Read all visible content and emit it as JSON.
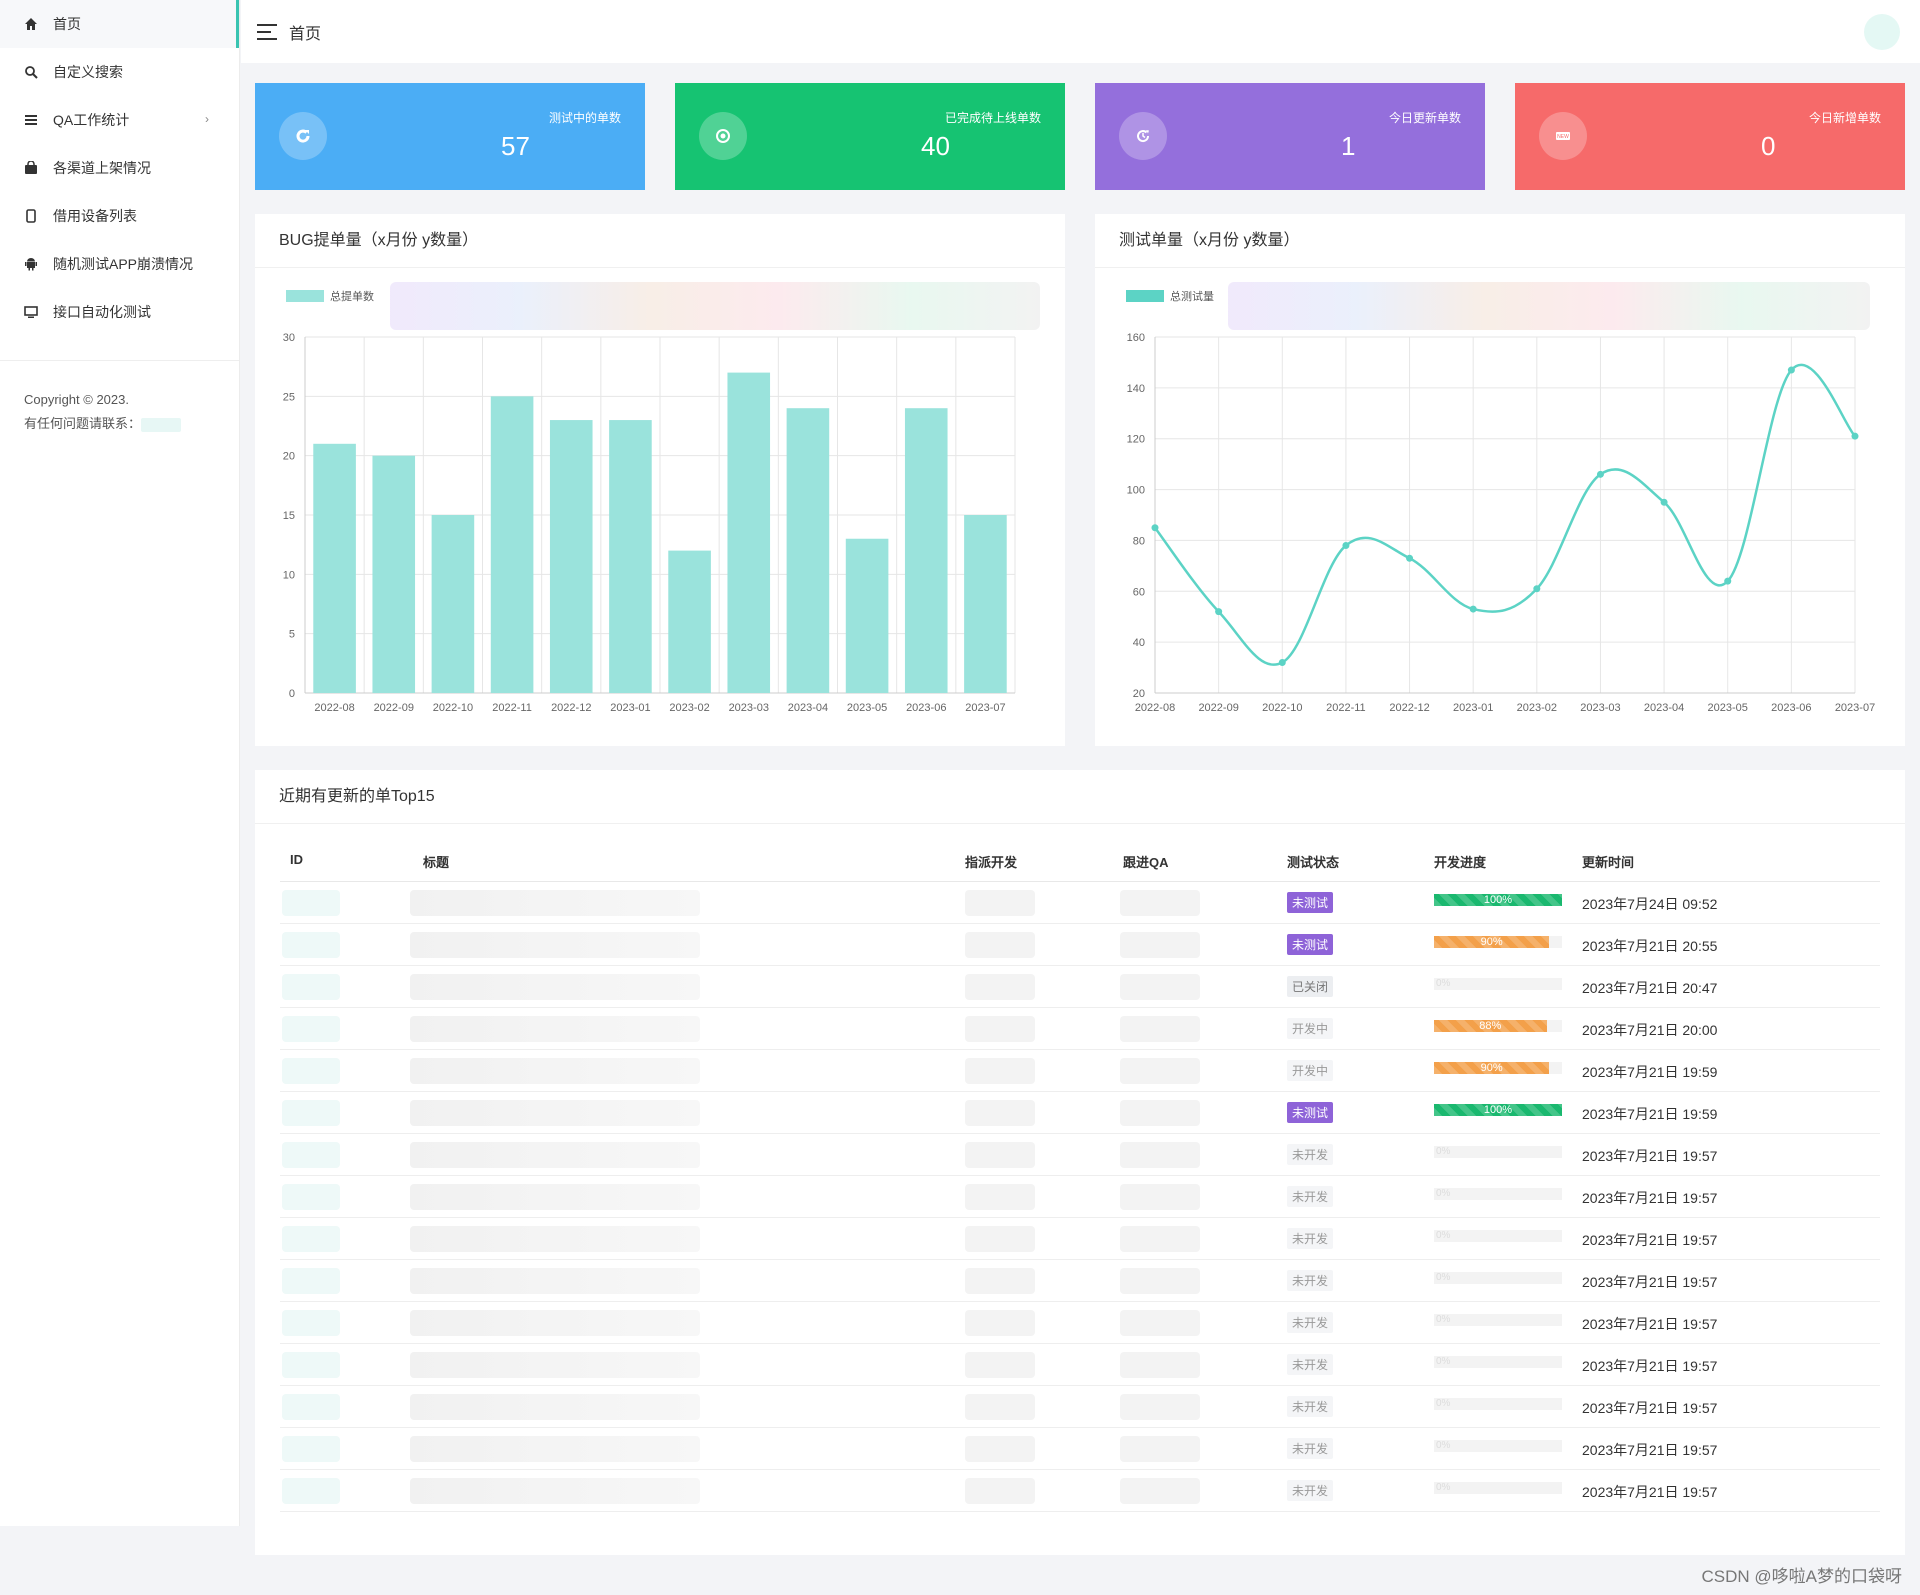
{
  "sidebar": {
    "items": [
      {
        "label": "首页",
        "icon": "home-icon",
        "active": true
      },
      {
        "label": "自定义搜索",
        "icon": "search-icon"
      },
      {
        "label": "QA工作统计",
        "icon": "list-icon",
        "chevron": "›"
      },
      {
        "label": "各渠道上架情况",
        "icon": "bag-icon"
      },
      {
        "label": "借用设备列表",
        "icon": "phone-icon"
      },
      {
        "label": "随机测试APP崩溃情况",
        "icon": "android-icon"
      },
      {
        "label": "接口自动化测试",
        "icon": "monitor-icon"
      }
    ],
    "copyright": "Copyright © 2023.",
    "contact_label": "有任何问题请联系："
  },
  "header": {
    "title": "首页"
  },
  "stats": [
    {
      "label": "测试中的单数",
      "value": "57",
      "color": "#4badf5",
      "icon": "refresh-icon"
    },
    {
      "label": "已完成待上线单数",
      "value": "40",
      "color": "#16c372",
      "icon": "target-icon"
    },
    {
      "label": "今日更新单数",
      "value": "1",
      "color": "#946fdc",
      "icon": "reload-icon"
    },
    {
      "label": "今日新增单数",
      "value": "0",
      "color": "#f66a6a",
      "icon": "new-badge-icon"
    }
  ],
  "bug_panel": {
    "title": "BUG提单量（x月份 y数量）"
  },
  "test_panel": {
    "title": "测试单量（x月份 y数量）"
  },
  "chart_data": [
    {
      "type": "bar",
      "title": "BUG提单量（x月份 y数量）",
      "categories": [
        "2022-08",
        "2022-09",
        "2022-10",
        "2022-11",
        "2022-12",
        "2023-01",
        "2023-02",
        "2023-03",
        "2023-04",
        "2023-05",
        "2023-06",
        "2023-07"
      ],
      "series": [
        {
          "name": "总提单数",
          "values": [
            21,
            20,
            15,
            25,
            23,
            23,
            12,
            27,
            24,
            13,
            24,
            15
          ],
          "color": "#9ae3dc"
        }
      ],
      "yticks": [
        "0",
        "5",
        "10",
        "15",
        "20",
        "25",
        "30"
      ],
      "ylim": [
        0,
        30
      ],
      "grid": true,
      "legend": "top-left"
    },
    {
      "type": "line",
      "title": "测试单量（x月份 y数量）",
      "categories": [
        "2022-08",
        "2022-09",
        "2022-10",
        "2022-11",
        "2022-12",
        "2023-01",
        "2023-02",
        "2023-03",
        "2023-04",
        "2023-05",
        "2023-06",
        "2023-07"
      ],
      "series": [
        {
          "name": "总测试量",
          "values": [
            85,
            52,
            32,
            78,
            73,
            53,
            61,
            106,
            95,
            64,
            147,
            121
          ],
          "color": "#5cd3c5"
        }
      ],
      "yticks": [
        "20",
        "40",
        "60",
        "80",
        "100",
        "120",
        "140",
        "160"
      ],
      "ylim": [
        20,
        160
      ],
      "grid": true,
      "legend": "top-left"
    }
  ],
  "table": {
    "title": "近期有更新的单Top15",
    "columns": [
      "ID",
      "标题",
      "指派开发",
      "跟进QA",
      "测试状态",
      "开发进度",
      "更新时间"
    ],
    "rows": [
      {
        "status": "未测试",
        "status_style": "purple",
        "progress": 100,
        "progress_label": "100%",
        "bar": "green",
        "time": "2023年7月24日 09:52"
      },
      {
        "status": "未测试",
        "status_style": "purple",
        "progress": 90,
        "progress_label": "90%",
        "bar": "orange",
        "time": "2023年7月21日 20:55"
      },
      {
        "status": "已关闭",
        "status_style": "gray",
        "progress": 0,
        "progress_label": "0%",
        "bar": "none",
        "time": "2023年7月21日 20:47"
      },
      {
        "status": "开发中",
        "status_style": "plain",
        "progress": 88,
        "progress_label": "88%",
        "bar": "orange",
        "time": "2023年7月21日 20:00"
      },
      {
        "status": "开发中",
        "status_style": "plain",
        "progress": 90,
        "progress_label": "90%",
        "bar": "orange",
        "time": "2023年7月21日 19:59"
      },
      {
        "status": "未测试",
        "status_style": "purple",
        "progress": 100,
        "progress_label": "100%",
        "bar": "green",
        "time": "2023年7月21日 19:59"
      },
      {
        "status": "未开发",
        "status_style": "plain",
        "progress": 0,
        "progress_label": "0%",
        "bar": "none",
        "time": "2023年7月21日 19:57"
      },
      {
        "status": "未开发",
        "status_style": "plain",
        "progress": 0,
        "progress_label": "0%",
        "bar": "none",
        "time": "2023年7月21日 19:57"
      },
      {
        "status": "未开发",
        "status_style": "plain",
        "progress": 0,
        "progress_label": "0%",
        "bar": "none",
        "time": "2023年7月21日 19:57"
      },
      {
        "status": "未开发",
        "status_style": "plain",
        "progress": 0,
        "progress_label": "0%",
        "bar": "none",
        "time": "2023年7月21日 19:57"
      },
      {
        "status": "未开发",
        "status_style": "plain",
        "progress": 0,
        "progress_label": "0%",
        "bar": "none",
        "time": "2023年7月21日 19:57"
      },
      {
        "status": "未开发",
        "status_style": "plain",
        "progress": 0,
        "progress_label": "0%",
        "bar": "none",
        "time": "2023年7月21日 19:57"
      },
      {
        "status": "未开发",
        "status_style": "plain",
        "progress": 0,
        "progress_label": "0%",
        "bar": "none",
        "time": "2023年7月21日 19:57"
      },
      {
        "status": "未开发",
        "status_style": "plain",
        "progress": 0,
        "progress_label": "0%",
        "bar": "none",
        "time": "2023年7月21日 19:57"
      },
      {
        "status": "未开发",
        "status_style": "plain",
        "progress": 0,
        "progress_label": "0%",
        "bar": "none",
        "time": "2023年7月21日 19:57"
      }
    ]
  },
  "watermark": "CSDN @哆啦A梦的口袋呀"
}
